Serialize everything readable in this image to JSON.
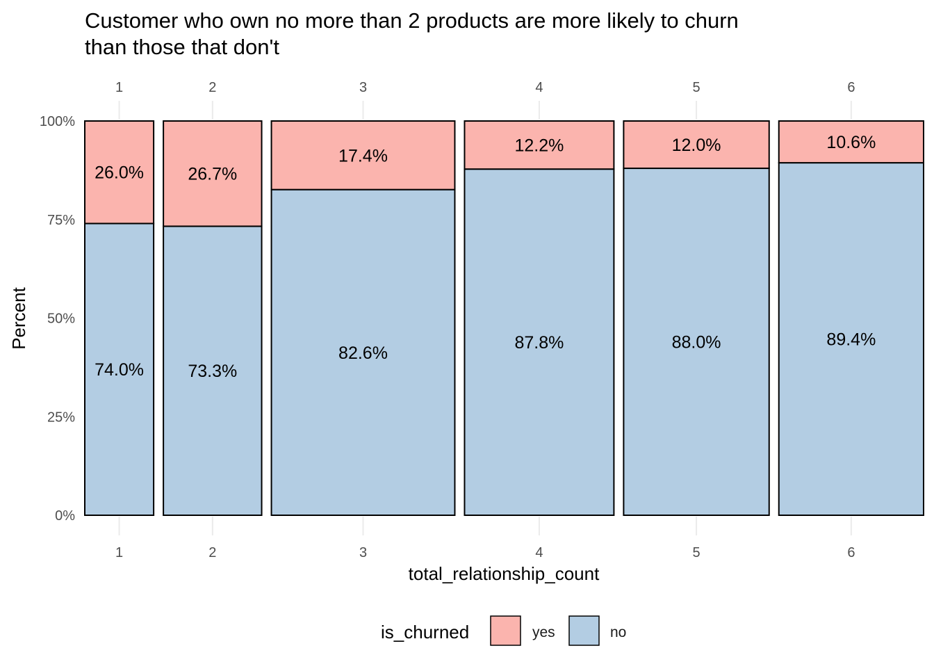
{
  "chart_data": {
    "type": "bar",
    "variant": "stacked-percent-mosaic",
    "title_lines": [
      "Customer who own no more than 2 products are more likely to churn",
      "than those that don't"
    ],
    "xlabel": "total_relationship_count",
    "ylabel": "Percent",
    "ylim": [
      0,
      100
    ],
    "y_ticks": [
      {
        "value": 0,
        "label": "0%"
      },
      {
        "value": 25,
        "label": "25%"
      },
      {
        "value": 50,
        "label": "50%"
      },
      {
        "value": 75,
        "label": "75%"
      },
      {
        "value": 100,
        "label": "100%"
      }
    ],
    "categories": [
      "1",
      "2",
      "3",
      "4",
      "5",
      "6"
    ],
    "category_share": [
      0.089,
      0.127,
      0.237,
      0.193,
      0.188,
      0.187
    ],
    "series": [
      {
        "name": "no",
        "color": "#B3CDE3",
        "values": [
          74.0,
          73.3,
          82.6,
          87.8,
          88.0,
          89.4
        ],
        "labels": [
          "74.0%",
          "73.3%",
          "82.6%",
          "87.8%",
          "88.0%",
          "89.4%"
        ]
      },
      {
        "name": "yes",
        "color": "#FBB4AE",
        "values": [
          26.0,
          26.7,
          17.4,
          12.2,
          12.0,
          10.6
        ],
        "labels": [
          "26.0%",
          "26.7%",
          "17.4%",
          "12.2%",
          "12.0%",
          "10.6%"
        ]
      }
    ],
    "legend": {
      "title": "is_churned",
      "position": "bottom",
      "entries": [
        {
          "label": "yes",
          "color": "#FBB4AE"
        },
        {
          "label": "no",
          "color": "#B3CDE3"
        }
      ]
    },
    "grid": false
  }
}
